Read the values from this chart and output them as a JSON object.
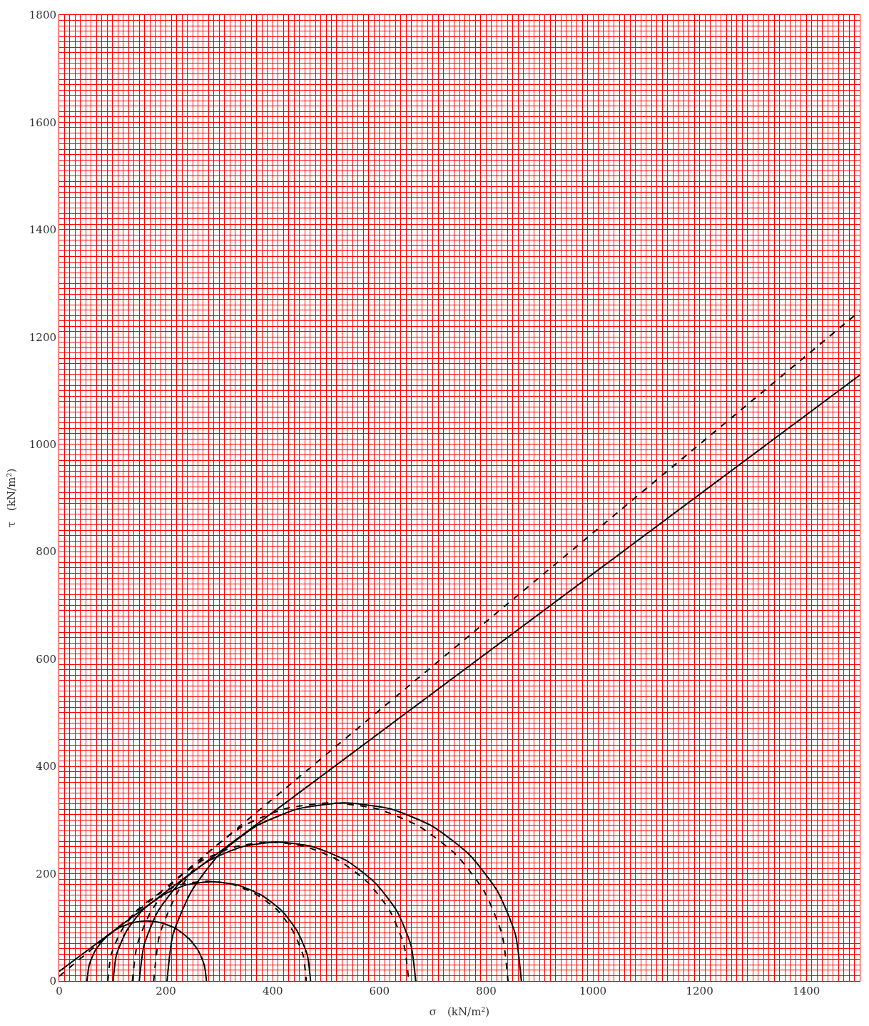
{
  "chart_data": {
    "type": "line",
    "xlabel": "σ　(kN/m²)",
    "ylabel": "τ　(kN/m²)",
    "xlim": [
      0,
      1500
    ],
    "ylim": [
      0,
      1800
    ],
    "xticks": [
      0,
      {
        "value": 10,
        "label": null
      },
      {
        "value": 20,
        "label": null
      },
      {
        "value": 30,
        "label": null
      },
      {
        "value": 40,
        "label": null
      },
      {
        "value": 50,
        "label": null
      },
      {
        "value": 60,
        "label": null
      },
      {
        "value": 70,
        "label": null
      },
      {
        "value": 80,
        "label": null
      },
      {
        "value": 90,
        "label": null
      },
      {
        "value": 100,
        "label": null
      },
      {
        "value": 110,
        "label": null
      },
      {
        "value": 120,
        "label": null
      },
      {
        "value": 130,
        "label": null
      },
      {
        "value": 140,
        "label": null
      },
      {
        "value": 150,
        "label": null
      },
      {
        "value": 160,
        "label": null
      },
      {
        "value": 170,
        "label": null
      },
      {
        "value": 180,
        "label": null
      },
      {
        "value": 190,
        "label": null
      },
      200,
      {
        "value": 210,
        "label": null
      },
      {
        "value": 220,
        "label": null
      },
      {
        "value": 230,
        "label": null
      },
      {
        "value": 240,
        "label": null
      },
      {
        "value": 250,
        "label": null
      },
      {
        "value": 260,
        "label": null
      },
      {
        "value": 270,
        "label": null
      },
      {
        "value": 280,
        "label": null
      },
      {
        "value": 290,
        "label": null
      },
      {
        "value": 300,
        "label": null
      },
      {
        "value": 310,
        "label": null
      },
      {
        "value": 320,
        "label": null
      },
      {
        "value": 330,
        "label": null
      },
      {
        "value": 340,
        "label": null
      },
      {
        "value": 350,
        "label": null
      },
      {
        "value": 360,
        "label": null
      },
      {
        "value": 370,
        "label": null
      },
      {
        "value": 380,
        "label": null
      },
      {
        "value": 390,
        "label": null
      },
      400,
      {
        "value": 410,
        "label": null
      },
      {
        "value": 420,
        "label": null
      },
      {
        "value": 430,
        "label": null
      },
      {
        "value": 440,
        "label": null
      },
      {
        "value": 450,
        "label": null
      },
      {
        "value": 460,
        "label": null
      },
      {
        "value": 470,
        "label": null
      },
      {
        "value": 480,
        "label": null
      },
      {
        "value": 490,
        "label": null
      },
      {
        "value": 500,
        "label": null
      },
      {
        "value": 510,
        "label": null
      },
      {
        "value": 520,
        "label": null
      },
      {
        "value": 530,
        "label": null
      },
      {
        "value": 540,
        "label": null
      },
      {
        "value": 550,
        "label": null
      },
      {
        "value": 560,
        "label": null
      },
      {
        "value": 570,
        "label": null
      },
      {
        "value": 580,
        "label": null
      },
      {
        "value": 590,
        "label": null
      },
      600,
      {
        "value": 610,
        "label": null
      },
      {
        "value": 620,
        "label": null
      },
      {
        "value": 630,
        "label": null
      },
      {
        "value": 640,
        "label": null
      },
      {
        "value": 650,
        "label": null
      },
      {
        "value": 660,
        "label": null
      },
      {
        "value": 670,
        "label": null
      },
      {
        "value": 680,
        "label": null
      },
      {
        "value": 690,
        "label": null
      },
      {
        "value": 700,
        "label": null
      },
      {
        "value": 710,
        "label": null
      },
      {
        "value": 720,
        "label": null
      },
      {
        "value": 730,
        "label": null
      },
      {
        "value": 740,
        "label": null
      },
      {
        "value": 750,
        "label": null
      },
      {
        "value": 760,
        "label": null
      },
      {
        "value": 770,
        "label": null
      },
      {
        "value": 780,
        "label": null
      },
      {
        "value": 790,
        "label": null
      },
      800,
      {
        "value": 810,
        "label": null
      },
      {
        "value": 820,
        "label": null
      },
      {
        "value": 830,
        "label": null
      },
      {
        "value": 840,
        "label": null
      },
      {
        "value": 850,
        "label": null
      },
      {
        "value": 860,
        "label": null
      },
      {
        "value": 870,
        "label": null
      },
      {
        "value": 880,
        "label": null
      },
      {
        "value": 890,
        "label": null
      },
      {
        "value": 900,
        "label": null
      },
      {
        "value": 910,
        "label": null
      },
      {
        "value": 920,
        "label": null
      },
      {
        "value": 930,
        "label": null
      },
      {
        "value": 940,
        "label": null
      },
      {
        "value": 950,
        "label": null
      },
      {
        "value": 960,
        "label": null
      },
      {
        "value": 970,
        "label": null
      },
      {
        "value": 980,
        "label": null
      },
      {
        "value": 990,
        "label": null
      },
      1000,
      {
        "value": 1010,
        "label": null
      },
      {
        "value": 1020,
        "label": null
      },
      {
        "value": 1030,
        "label": null
      },
      {
        "value": 1040,
        "label": null
      },
      {
        "value": 1050,
        "label": null
      },
      {
        "value": 1060,
        "label": null
      },
      {
        "value": 1070,
        "label": null
      },
      {
        "value": 1080,
        "label": null
      },
      {
        "value": 1090,
        "label": null
      },
      {
        "value": 1100,
        "label": null
      },
      {
        "value": 1110,
        "label": null
      },
      {
        "value": 1120,
        "label": null
      },
      {
        "value": 1130,
        "label": null
      },
      {
        "value": 1140,
        "label": null
      },
      {
        "value": 1150,
        "label": null
      },
      {
        "value": 1160,
        "label": null
      },
      {
        "value": 1170,
        "label": null
      },
      {
        "value": 1180,
        "label": null
      },
      {
        "value": 1190,
        "label": null
      },
      1200,
      {
        "value": 1210,
        "label": null
      },
      {
        "value": 1220,
        "label": null
      },
      {
        "value": 1230,
        "label": null
      },
      {
        "value": 1240,
        "label": null
      },
      {
        "value": 1250,
        "label": null
      },
      {
        "value": 1260,
        "label": null
      },
      {
        "value": 1270,
        "label": null
      },
      {
        "value": 1280,
        "label": null
      },
      {
        "value": 1290,
        "label": null
      },
      {
        "value": 1300,
        "label": null
      },
      {
        "value": 1310,
        "label": null
      },
      {
        "value": 1320,
        "label": null
      },
      {
        "value": 1330,
        "label": null
      },
      {
        "value": 1340,
        "label": null
      },
      {
        "value": 1350,
        "label": null
      },
      {
        "value": 1360,
        "label": null
      },
      {
        "value": 1370,
        "label": null
      },
      {
        "value": 1380,
        "label": null
      },
      {
        "value": 1390,
        "label": null
      },
      1400,
      {
        "value": 1410,
        "label": null
      },
      {
        "value": 1420,
        "label": null
      },
      {
        "value": 1430,
        "label": null
      },
      {
        "value": 1440,
        "label": null
      },
      {
        "value": 1450,
        "label": null
      },
      {
        "value": 1460,
        "label": null
      },
      {
        "value": 1470,
        "label": null
      },
      {
        "value": 1480,
        "label": null
      },
      {
        "value": 1490,
        "label": null
      }
    ],
    "yticks": [
      0,
      {
        "value": 10,
        "label": null
      },
      {
        "value": 20,
        "label": null
      },
      {
        "value": 30,
        "label": null
      },
      {
        "value": 40,
        "label": null
      },
      {
        "value": 50,
        "label": null
      },
      {
        "value": 60,
        "label": null
      },
      {
        "value": 70,
        "label": null
      },
      {
        "value": 80,
        "label": null
      },
      {
        "value": 90,
        "label": null
      },
      {
        "value": 100,
        "label": null
      },
      {
        "value": 110,
        "label": null
      },
      {
        "value": 120,
        "label": null
      },
      {
        "value": 130,
        "label": null
      },
      {
        "value": 140,
        "label": null
      },
      {
        "value": 150,
        "label": null
      },
      {
        "value": 160,
        "label": null
      },
      {
        "value": 170,
        "label": null
      },
      {
        "value": 180,
        "label": null
      },
      {
        "value": 190,
        "label": null
      },
      200,
      {
        "value": 210,
        "label": null
      },
      {
        "value": 220,
        "label": null
      },
      {
        "value": 230,
        "label": null
      },
      {
        "value": 240,
        "label": null
      },
      {
        "value": 250,
        "label": null
      },
      {
        "value": 260,
        "label": null
      },
      {
        "value": 270,
        "label": null
      },
      {
        "value": 280,
        "label": null
      },
      {
        "value": 290,
        "label": null
      },
      {
        "value": 300,
        "label": null
      },
      {
        "value": 310,
        "label": null
      },
      {
        "value": 320,
        "label": null
      },
      {
        "value": 330,
        "label": null
      },
      {
        "value": 340,
        "label": null
      },
      {
        "value": 350,
        "label": null
      },
      {
        "value": 360,
        "label": null
      },
      {
        "value": 370,
        "label": null
      },
      {
        "value": 380,
        "label": null
      },
      {
        "value": 390,
        "label": null
      },
      400,
      {
        "value": 410,
        "label": null
      },
      {
        "value": 420,
        "label": null
      },
      {
        "value": 430,
        "label": null
      },
      {
        "value": 440,
        "label": null
      },
      {
        "value": 450,
        "label": null
      },
      {
        "value": 460,
        "label": null
      },
      {
        "value": 470,
        "label": null
      },
      {
        "value": 480,
        "label": null
      },
      {
        "value": 490,
        "label": null
      },
      {
        "value": 500,
        "label": null
      },
      {
        "value": 510,
        "label": null
      },
      {
        "value": 520,
        "label": null
      },
      {
        "value": 530,
        "label": null
      },
      {
        "value": 540,
        "label": null
      },
      {
        "value": 550,
        "label": null
      },
      {
        "value": 560,
        "label": null
      },
      {
        "value": 570,
        "label": null
      },
      {
        "value": 580,
        "label": null
      },
      {
        "value": 590,
        "label": null
      },
      600,
      {
        "value": 610,
        "label": null
      },
      {
        "value": 620,
        "label": null
      },
      {
        "value": 630,
        "label": null
      },
      {
        "value": 640,
        "label": null
      },
      {
        "value": 650,
        "label": null
      },
      {
        "value": 660,
        "label": null
      },
      {
        "value": 670,
        "label": null
      },
      {
        "value": 680,
        "label": null
      },
      {
        "value": 690,
        "label": null
      },
      {
        "value": 700,
        "label": null
      },
      {
        "value": 710,
        "label": null
      },
      {
        "value": 720,
        "label": null
      },
      {
        "value": 730,
        "label": null
      },
      {
        "value": 740,
        "label": null
      },
      {
        "value": 750,
        "label": null
      },
      {
        "value": 760,
        "label": null
      },
      {
        "value": 770,
        "label": null
      },
      {
        "value": 780,
        "label": null
      },
      {
        "value": 790,
        "label": null
      },
      800,
      {
        "value": 810,
        "label": null
      },
      {
        "value": 820,
        "label": null
      },
      {
        "value": 830,
        "label": null
      },
      {
        "value": 840,
        "label": null
      },
      {
        "value": 850,
        "label": null
      },
      {
        "value": 860,
        "label": null
      },
      {
        "value": 870,
        "label": null
      },
      {
        "value": 880,
        "label": null
      },
      {
        "value": 890,
        "label": null
      },
      {
        "value": 900,
        "label": null
      },
      {
        "value": 910,
        "label": null
      },
      {
        "value": 920,
        "label": null
      },
      {
        "value": 930,
        "label": null
      },
      {
        "value": 940,
        "label": null
      },
      {
        "value": 950,
        "label": null
      },
      {
        "value": 960,
        "label": null
      },
      {
        "value": 970,
        "label": null
      },
      {
        "value": 980,
        "label": null
      },
      {
        "value": 990,
        "label": null
      },
      1000,
      {
        "value": 1010,
        "label": null
      },
      {
        "value": 1020,
        "label": null
      },
      {
        "value": 1030,
        "label": null
      },
      {
        "value": 1040,
        "label": null
      },
      {
        "value": 1050,
        "label": null
      },
      {
        "value": 1060,
        "label": null
      },
      {
        "value": 1070,
        "label": null
      },
      {
        "value": 1080,
        "label": null
      },
      {
        "value": 1090,
        "label": null
      },
      {
        "value": 1100,
        "label": null
      },
      {
        "value": 1110,
        "label": null
      },
      {
        "value": 1120,
        "label": null
      },
      {
        "value": 1130,
        "label": null
      },
      {
        "value": 1140,
        "label": null
      },
      {
        "value": 1150,
        "label": null
      },
      {
        "value": 1160,
        "label": null
      },
      {
        "value": 1170,
        "label": null
      },
      {
        "value": 1180,
        "label": null
      },
      {
        "value": 1190,
        "label": null
      },
      1200,
      {
        "value": 1210,
        "label": null
      },
      {
        "value": 1220,
        "label": null
      },
      {
        "value": 1230,
        "label": null
      },
      {
        "value": 1240,
        "label": null
      },
      {
        "value": 1250,
        "label": null
      },
      {
        "value": 1260,
        "label": null
      },
      {
        "value": 1270,
        "label": null
      },
      {
        "value": 1280,
        "label": null
      },
      {
        "value": 1290,
        "label": null
      },
      {
        "value": 1300,
        "label": null
      },
      {
        "value": 1310,
        "label": null
      },
      {
        "value": 1320,
        "label": null
      },
      {
        "value": 1330,
        "label": null
      },
      {
        "value": 1340,
        "label": null
      },
      {
        "value": 1350,
        "label": null
      },
      {
        "value": 1360,
        "label": null
      },
      {
        "value": 1370,
        "label": null
      },
      {
        "value": 1380,
        "label": null
      },
      {
        "value": 1390,
        "label": null
      },
      1400,
      {
        "value": 1410,
        "label": null
      },
      {
        "value": 1420,
        "label": null
      },
      {
        "value": 1430,
        "label": null
      },
      {
        "value": 1440,
        "label": null
      },
      {
        "value": 1450,
        "label": null
      },
      {
        "value": 1460,
        "label": null
      },
      {
        "value": 1470,
        "label": null
      },
      {
        "value": 1480,
        "label": null
      },
      {
        "value": 1490,
        "label": null
      },
      {
        "value": 1500,
        "label": null
      },
      {
        "value": 1510,
        "label": null
      },
      {
        "value": 1520,
        "label": null
      },
      {
        "value": 1530,
        "label": null
      },
      {
        "value": 1540,
        "label": null
      },
      {
        "value": 1550,
        "label": null
      },
      {
        "value": 1560,
        "label": null
      },
      {
        "value": 1570,
        "label": null
      },
      {
        "value": 1580,
        "label": null
      },
      {
        "value": 1590,
        "label": null
      },
      1600,
      {
        "value": 1610,
        "label": null
      },
      {
        "value": 1620,
        "label": null
      },
      {
        "value": 1630,
        "label": null
      },
      {
        "value": 1640,
        "label": null
      },
      {
        "value": 1650,
        "label": null
      },
      {
        "value": 1660,
        "label": null
      },
      {
        "value": 1670,
        "label": null
      },
      {
        "value": 1680,
        "label": null
      },
      {
        "value": 1690,
        "label": null
      },
      {
        "value": 1700,
        "label": null
      },
      {
        "value": 1710,
        "label": null
      },
      {
        "value": 1720,
        "label": null
      },
      {
        "value": 1730,
        "label": null
      },
      {
        "value": 1740,
        "label": null
      },
      {
        "value": 1750,
        "label": null
      },
      {
        "value": 1760,
        "label": null
      },
      {
        "value": 1770,
        "label": null
      },
      {
        "value": 1780,
        "label": null
      },
      {
        "value": 1790,
        "label": null
      },
      1800
    ],
    "grid": true,
    "marker": "none",
    "series": [
      {
        "color": "#000000",
        "line_style": "solid",
        "x": [
          52,
          56,
          67,
          85,
          108,
          135,
          164,
          193,
          220,
          243,
          261,
          272,
          276
        ],
        "values": [
          0,
          29,
          56,
          79,
          97,
          108,
          112,
          108,
          97,
          79,
          56,
          29,
          0
        ]
      },
      {
        "color": "#000000",
        "line_style": "solid",
        "x": [
          101,
          107,
          126,
          155,
          194,
          238,
          286,
          334,
          379,
          417,
          446,
          465,
          471
        ],
        "values": [
          0,
          48,
          93,
          131,
          160,
          179,
          185,
          179,
          160,
          131,
          93,
          48,
          0
        ]
      },
      {
        "color": "#000000",
        "line_style": "solid",
        "x": [
          150,
          159,
          185,
          226,
          280,
          342,
          409,
          476,
          539,
          592,
          633,
          659,
          668
        ],
        "values": [
          0,
          67,
          130,
          183,
          224,
          250,
          259,
          250,
          224,
          183,
          130,
          67,
          0
        ]
      },
      {
        "color": "#000000",
        "line_style": "solid",
        "x": [
          202,
          213,
          247,
          299,
          368,
          448,
          534,
          620,
          700,
          769,
          822,
          855,
          866
        ],
        "values": [
          0,
          86,
          166,
          235,
          288,
          321,
          332,
          321,
          288,
          235,
          166,
          86,
          0
        ]
      },
      {
        "color": "#000000",
        "line_style": "dashed",
        "x": [
          91,
          97,
          116,
          146,
          184,
          229,
          277,
          325,
          370,
          409,
          438,
          457,
          463
        ],
        "values": [
          0,
          48,
          93,
          132,
          161,
          180,
          186,
          180,
          161,
          132,
          93,
          48,
          0
        ]
      },
      {
        "color": "#000000",
        "line_style": "dashed",
        "x": [
          137,
          146,
          172,
          213,
          267,
          329,
          396,
          463,
          525,
          579,
          620,
          646,
          655
        ],
        "values": [
          0,
          67,
          130,
          183,
          224,
          250,
          259,
          250,
          224,
          183,
          130,
          67,
          0
        ]
      },
      {
        "color": "#000000",
        "line_style": "dashed",
        "x": [
          177,
          188,
          222,
          274,
          343,
          423,
          509,
          595,
          675,
          744,
          797,
          830,
          841
        ],
        "values": [
          0,
          86,
          166,
          235,
          288,
          321,
          332,
          321,
          288,
          235,
          166,
          86,
          0
        ]
      },
      {
        "color": "#000000",
        "line_style": "solid",
        "x": [
          0,
          1500
        ],
        "values": [
          18,
          1129
        ]
      },
      {
        "color": "#000000",
        "line_style": "dashed",
        "x": [
          0,
          1500
        ],
        "values": [
          9,
          1248
        ]
      }
    ]
  }
}
